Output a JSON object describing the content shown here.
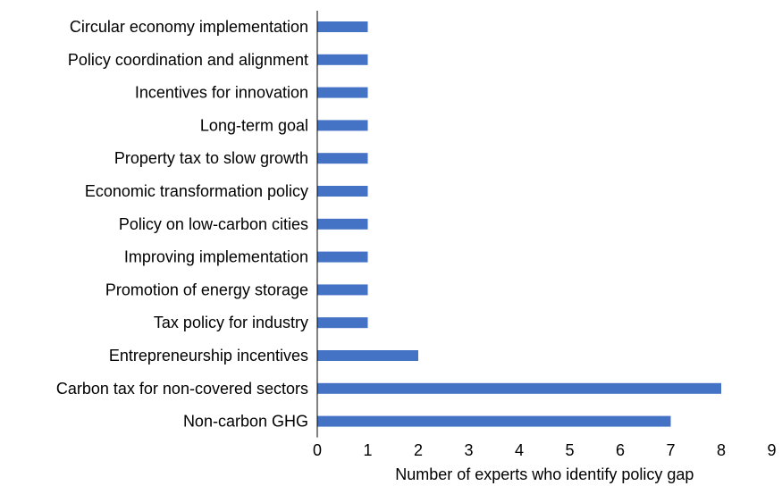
{
  "chart_data": {
    "type": "bar",
    "orientation": "horizontal",
    "categories": [
      "Circular economy implementation",
      "Policy coordination and alignment",
      "Incentives for innovation",
      "Long-term goal",
      "Property tax to slow growth",
      "Economic transformation policy",
      "Policy on low-carbon cities",
      "Improving implementation",
      "Promotion of energy storage",
      "Tax policy for industry",
      "Entrepreneurship incentives",
      "Carbon tax for non-covered sectors",
      "Non-carbon GHG"
    ],
    "values": [
      1,
      1,
      1,
      1,
      1,
      1,
      1,
      1,
      1,
      1,
      2,
      8,
      7
    ],
    "xlim": [
      0,
      9
    ],
    "xticks": [
      0,
      1,
      2,
      3,
      4,
      5,
      6,
      7,
      8,
      9
    ],
    "xlabel": "Number of experts who identify policy gap",
    "ylabel": "",
    "title": "",
    "grid": false,
    "bar_color": "#4472C4"
  }
}
